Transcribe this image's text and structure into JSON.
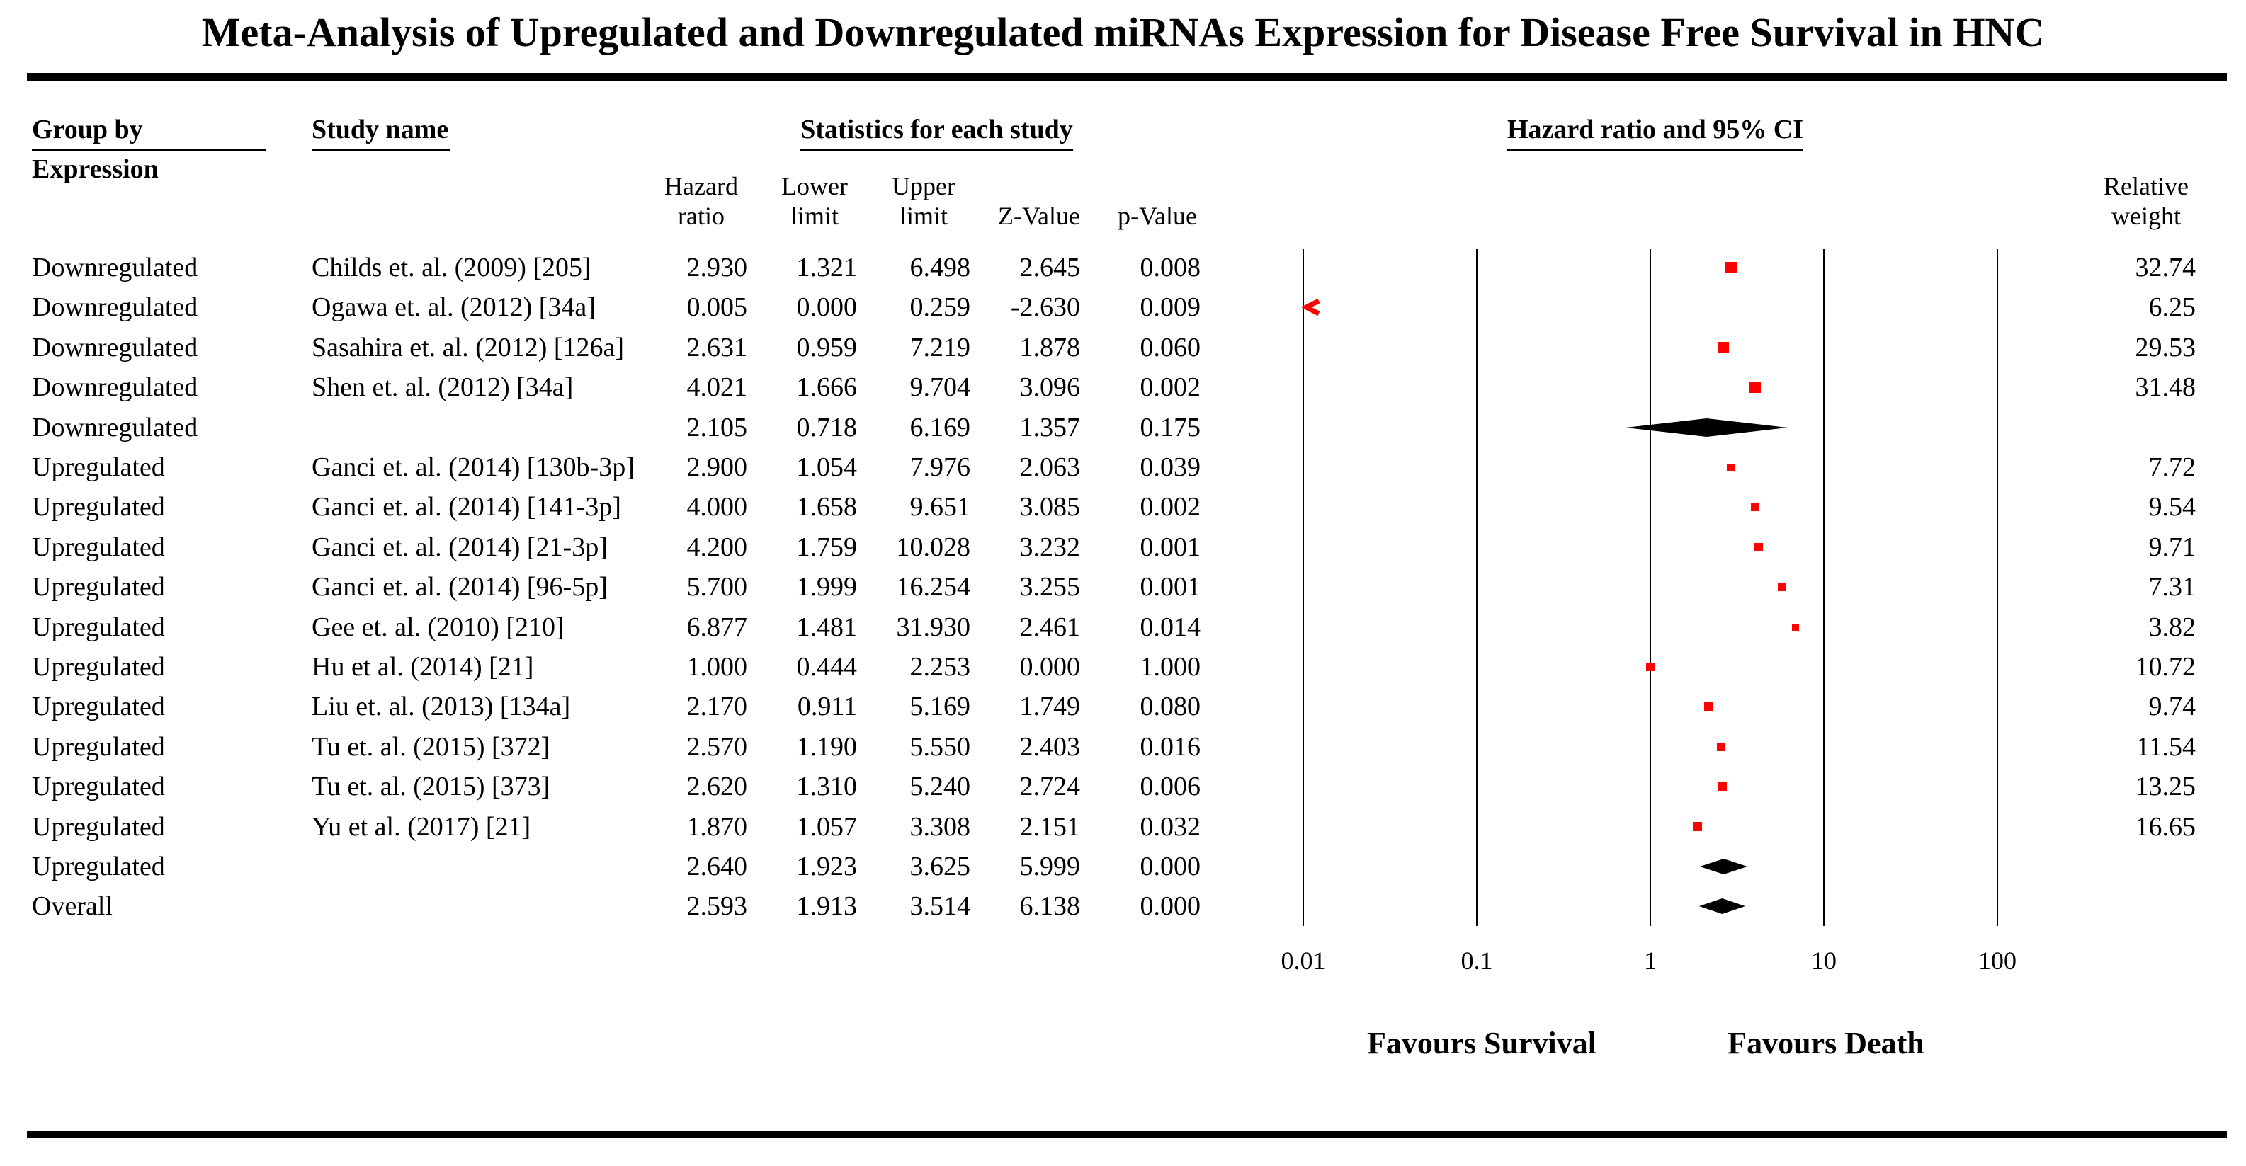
{
  "title": "Meta-Analysis of Upregulated and Downregulated miRNAs Expression for Disease Free Survival in HNC",
  "columns": {
    "group_by_line1": "Group by",
    "group_by_line2": "Expression",
    "study_name": "Study name",
    "stats_group": "Statistics for each study",
    "hr_ci_group": "Hazard ratio and 95% CI",
    "stat_cols": [
      {
        "label": "Hazard\nratio"
      },
      {
        "label": "Lower\nlimit"
      },
      {
        "label": "Upper\nlimit"
      },
      {
        "label": "Z-Value"
      },
      {
        "label": "p-Value"
      }
    ],
    "relative_weight": "Relative\nweight"
  },
  "axis": {
    "ticks": [
      "0.01",
      "0.1",
      "1",
      "10",
      "100"
    ]
  },
  "footer": {
    "left_label": "Favours Survival",
    "right_label": "Favours Death"
  },
  "colors": {
    "study_marker": "#ff0000",
    "summary_marker": "#000000",
    "ink": "#000000"
  },
  "chart_data": {
    "type": "scatter",
    "variant": "forest-plot",
    "x_scale": "log10",
    "x_ticks": [
      0.01,
      0.1,
      1,
      10,
      100
    ],
    "xlabel_left": "Favours Survival",
    "xlabel_right": "Favours Death",
    "rows": [
      {
        "group": "Downregulated",
        "study": "Childs et. al. (2009) [205]",
        "hr": "2.930",
        "lower": "1.321",
        "upper": "6.498",
        "z": "2.645",
        "p": "0.008",
        "weight": "32.74",
        "marker": "square"
      },
      {
        "group": "Downregulated",
        "study": "Ogawa et. al. (2012) [34a]",
        "hr": "0.005",
        "lower": "0.000",
        "upper": "0.259",
        "z": "-2.630",
        "p": "0.009",
        "weight": "6.25",
        "marker": "arrow_left"
      },
      {
        "group": "Downregulated",
        "study": "Sasahira et. al. (2012) [126a]",
        "hr": "2.631",
        "lower": "0.959",
        "upper": "7.219",
        "z": "1.878",
        "p": "0.060",
        "weight": "29.53",
        "marker": "square"
      },
      {
        "group": "Downregulated",
        "study": "Shen et. al. (2012) [34a]",
        "hr": "4.021",
        "lower": "1.666",
        "upper": "9.704",
        "z": "3.096",
        "p": "0.002",
        "weight": "31.48",
        "marker": "square"
      },
      {
        "group": "Downregulated",
        "study": "",
        "hr": "2.105",
        "lower": "0.718",
        "upper": "6.169",
        "z": "1.357",
        "p": "0.175",
        "weight": "",
        "marker": "diamond"
      },
      {
        "group": "Upregulated",
        "study": "Ganci et. al. (2014) [130b-3p]",
        "hr": "2.900",
        "lower": "1.054",
        "upper": "7.976",
        "z": "2.063",
        "p": "0.039",
        "weight": "7.72",
        "marker": "square"
      },
      {
        "group": "Upregulated",
        "study": "Ganci et. al. (2014) [141-3p]",
        "hr": "4.000",
        "lower": "1.658",
        "upper": "9.651",
        "z": "3.085",
        "p": "0.002",
        "weight": "9.54",
        "marker": "square"
      },
      {
        "group": "Upregulated",
        "study": "Ganci et. al. (2014) [21-3p]",
        "hr": "4.200",
        "lower": "1.759",
        "upper": "10.028",
        "z": "3.232",
        "p": "0.001",
        "weight": "9.71",
        "marker": "square"
      },
      {
        "group": "Upregulated",
        "study": "Ganci et. al. (2014) [96-5p]",
        "hr": "5.700",
        "lower": "1.999",
        "upper": "16.254",
        "z": "3.255",
        "p": "0.001",
        "weight": "7.31",
        "marker": "square"
      },
      {
        "group": "Upregulated",
        "study": "Gee et. al. (2010) [210]",
        "hr": "6.877",
        "lower": "1.481",
        "upper": "31.930",
        "z": "2.461",
        "p": "0.014",
        "weight": "3.82",
        "marker": "square"
      },
      {
        "group": "Upregulated",
        "study": "Hu et al. (2014) [21]",
        "hr": "1.000",
        "lower": "0.444",
        "upper": "2.253",
        "z": "0.000",
        "p": "1.000",
        "weight": "10.72",
        "marker": "square"
      },
      {
        "group": "Upregulated",
        "study": "Liu et. al. (2013) [134a]",
        "hr": "2.170",
        "lower": "0.911",
        "upper": "5.169",
        "z": "1.749",
        "p": "0.080",
        "weight": "9.74",
        "marker": "square"
      },
      {
        "group": "Upregulated",
        "study": "Tu et. al. (2015) [372]",
        "hr": "2.570",
        "lower": "1.190",
        "upper": "5.550",
        "z": "2.403",
        "p": "0.016",
        "weight": "11.54",
        "marker": "square"
      },
      {
        "group": "Upregulated",
        "study": "Tu et. al. (2015) [373]",
        "hr": "2.620",
        "lower": "1.310",
        "upper": "5.240",
        "z": "2.724",
        "p": "0.006",
        "weight": "13.25",
        "marker": "square"
      },
      {
        "group": "Upregulated",
        "study": "Yu et al. (2017) [21]",
        "hr": "1.870",
        "lower": "1.057",
        "upper": "3.308",
        "z": "2.151",
        "p": "0.032",
        "weight": "16.65",
        "marker": "square"
      },
      {
        "group": "Upregulated",
        "study": "",
        "hr": "2.640",
        "lower": "1.923",
        "upper": "3.625",
        "z": "5.999",
        "p": "0.000",
        "weight": "",
        "marker": "diamond"
      },
      {
        "group": "Overall",
        "study": "",
        "hr": "2.593",
        "lower": "1.913",
        "upper": "3.514",
        "z": "6.138",
        "p": "0.000",
        "weight": "",
        "marker": "diamond"
      }
    ]
  }
}
